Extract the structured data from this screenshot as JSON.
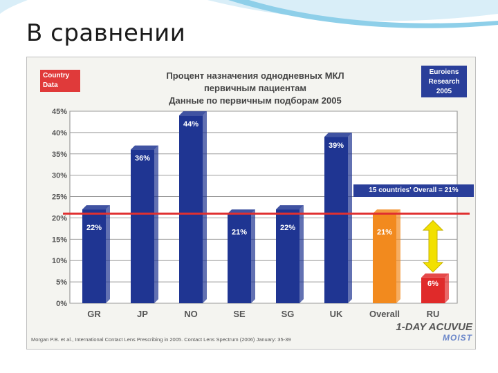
{
  "slide": {
    "title": "В сравнении"
  },
  "badges": {
    "left": "Country\nData",
    "right": "Euroiens\nResearch\n2005"
  },
  "overall_label": "15 countries' Overall = 21%",
  "source": "Morgan P.B. et al., International Contact Lens Prescribing in 2005. Contact Lens Spectrum (2006) January: 35-39",
  "brand": {
    "line1": "1-DAY ACUVUE",
    "line2": "MOIST"
  },
  "colors": {
    "bar": "#1f3592",
    "overall_bar": "#f28a1e",
    "ru_bar": "#e02a2a",
    "reference_line": "#e03030",
    "arrow": "#f2e000"
  },
  "chart_data": {
    "type": "bar",
    "title_lines": [
      "Процент назначения однодневных МКЛ",
      "первичным пациентам",
      "Данные по первичным подборам 2005"
    ],
    "categories": [
      "GR",
      "JP",
      "NO",
      "SE",
      "SG",
      "UK",
      "Overall",
      "RU"
    ],
    "values": [
      22,
      36,
      44,
      21,
      22,
      39,
      21,
      6
    ],
    "data_labels": [
      "22%",
      "36%",
      "44%",
      "21%",
      "22%",
      "39%",
      "21%",
      "6%"
    ],
    "yticks": [
      "0%",
      "5%",
      "10%",
      "15%",
      "20%",
      "25%",
      "30%",
      "35%",
      "40%",
      "45%"
    ],
    "ylim": [
      0,
      45
    ],
    "reference_line": 21,
    "grid": true,
    "xlabel": "",
    "ylabel": ""
  }
}
